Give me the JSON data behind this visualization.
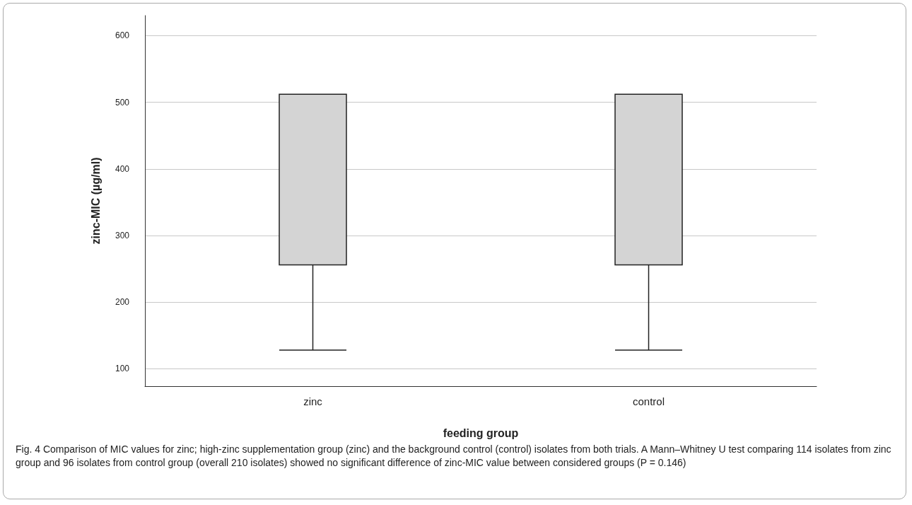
{
  "chart_data": {
    "type": "box",
    "xlabel": "feeding group",
    "ylabel": "zinc-MIC (µg/ml)",
    "categories": [
      "zinc",
      "control"
    ],
    "boxes": [
      {
        "low": 128,
        "q1": 256,
        "median": 256,
        "q3": 512,
        "high": 512
      },
      {
        "low": 128,
        "q1": 256,
        "median": 256,
        "q3": 512,
        "high": 512
      }
    ],
    "color": "#d4d4d4",
    "ylim": [
      74,
      630
    ],
    "yticks": [
      100,
      200,
      300,
      400,
      500,
      600
    ],
    "grid": "y",
    "annotations": [
      "Fig. 4  Comparison of MIC values for zinc; high-zinc supplementation group (zinc) and the background control (control) isolates from both trials. A Mann–Whitney U test comparing 114 isolates from zinc group and 96 isolates from control group (overall 210 isolates) showed no significant difference of zinc-MIC value between considered groups (P = 0.146)"
    ]
  }
}
